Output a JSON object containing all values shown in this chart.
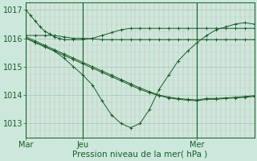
{
  "bg_color": "#cce8dc",
  "plot_bg_color": "#cce8dc",
  "line_color": "#1a5c28",
  "xlabel": "Pression niveau de la mer( hPa )",
  "ylim": [
    1012.5,
    1017.25
  ],
  "yticks": [
    1013,
    1014,
    1015,
    1016,
    1017
  ],
  "xtick_labels": [
    "Mar",
    "Jeu",
    "Mer"
  ],
  "xtick_positions": [
    0,
    12,
    36
  ],
  "tick_fontsize": 7,
  "label_fontsize": 7.5,
  "series": [
    {
      "x": [
        0,
        1,
        2,
        3,
        4,
        5,
        6,
        7,
        8,
        10,
        12,
        14,
        16,
        18,
        20,
        22,
        24,
        26,
        28,
        30,
        32,
        34,
        36,
        38,
        40,
        42,
        44,
        46,
        48
      ],
      "y": [
        1017.0,
        1016.8,
        1016.6,
        1016.4,
        1016.25,
        1016.15,
        1016.05,
        1016.0,
        1015.95,
        1015.95,
        1015.95,
        1016.0,
        1016.1,
        1016.2,
        1016.3,
        1016.35,
        1016.35,
        1016.35,
        1016.35,
        1016.35,
        1016.35,
        1016.35,
        1016.35,
        1016.35,
        1016.35,
        1016.35,
        1016.35,
        1016.35,
        1016.35
      ]
    },
    {
      "x": [
        0,
        2,
        4,
        6,
        8,
        10,
        12,
        14,
        16,
        18,
        20,
        22,
        24,
        26,
        28,
        30,
        32,
        34,
        36,
        38,
        40,
        42,
        44,
        46,
        48
      ],
      "y": [
        1016.1,
        1016.1,
        1016.1,
        1016.1,
        1016.05,
        1016.0,
        1016.0,
        1015.98,
        1015.95,
        1015.95,
        1015.95,
        1015.95,
        1015.95,
        1015.95,
        1015.95,
        1015.95,
        1015.95,
        1015.95,
        1015.95,
        1015.95,
        1015.95,
        1015.95,
        1015.95,
        1015.95,
        1015.95
      ]
    },
    {
      "x": [
        0,
        2,
        4,
        6,
        8,
        10,
        12,
        14,
        16,
        18,
        20,
        22,
        24,
        26,
        28,
        30,
        32,
        34,
        36,
        38,
        40,
        42,
        44,
        46,
        48
      ],
      "y": [
        1016.0,
        1015.85,
        1015.7,
        1015.55,
        1015.3,
        1015.0,
        1014.7,
        1014.35,
        1013.8,
        1013.3,
        1013.0,
        1012.85,
        1013.0,
        1013.5,
        1014.2,
        1014.7,
        1015.2,
        1015.55,
        1015.85,
        1016.1,
        1016.3,
        1016.4,
        1016.5,
        1016.55,
        1016.5
      ]
    },
    {
      "x": [
        0,
        2,
        4,
        6,
        8,
        10,
        12,
        14,
        16,
        18,
        20,
        22,
        24,
        26,
        28,
        30,
        32,
        34,
        36,
        38,
        40,
        42,
        44,
        46,
        48
      ],
      "y": [
        1016.0,
        1015.85,
        1015.7,
        1015.55,
        1015.4,
        1015.25,
        1015.1,
        1014.95,
        1014.8,
        1014.65,
        1014.5,
        1014.35,
        1014.2,
        1014.08,
        1013.98,
        1013.9,
        1013.85,
        1013.82,
        1013.8,
        1013.85,
        1013.85,
        1013.88,
        1013.9,
        1013.92,
        1013.95
      ]
    },
    {
      "x": [
        0,
        2,
        4,
        6,
        8,
        10,
        12,
        14,
        16,
        18,
        20,
        22,
        24,
        26,
        28,
        30,
        32,
        34,
        36,
        38,
        40,
        42,
        44,
        46,
        48
      ],
      "y": [
        1016.05,
        1015.9,
        1015.75,
        1015.6,
        1015.45,
        1015.3,
        1015.15,
        1015.0,
        1014.85,
        1014.7,
        1014.55,
        1014.4,
        1014.25,
        1014.12,
        1014.0,
        1013.93,
        1013.88,
        1013.85,
        1013.83,
        1013.88,
        1013.88,
        1013.9,
        1013.92,
        1013.95,
        1013.98
      ]
    }
  ],
  "vline_positions": [
    0,
    12,
    36
  ],
  "xlim": [
    0,
    48
  ]
}
